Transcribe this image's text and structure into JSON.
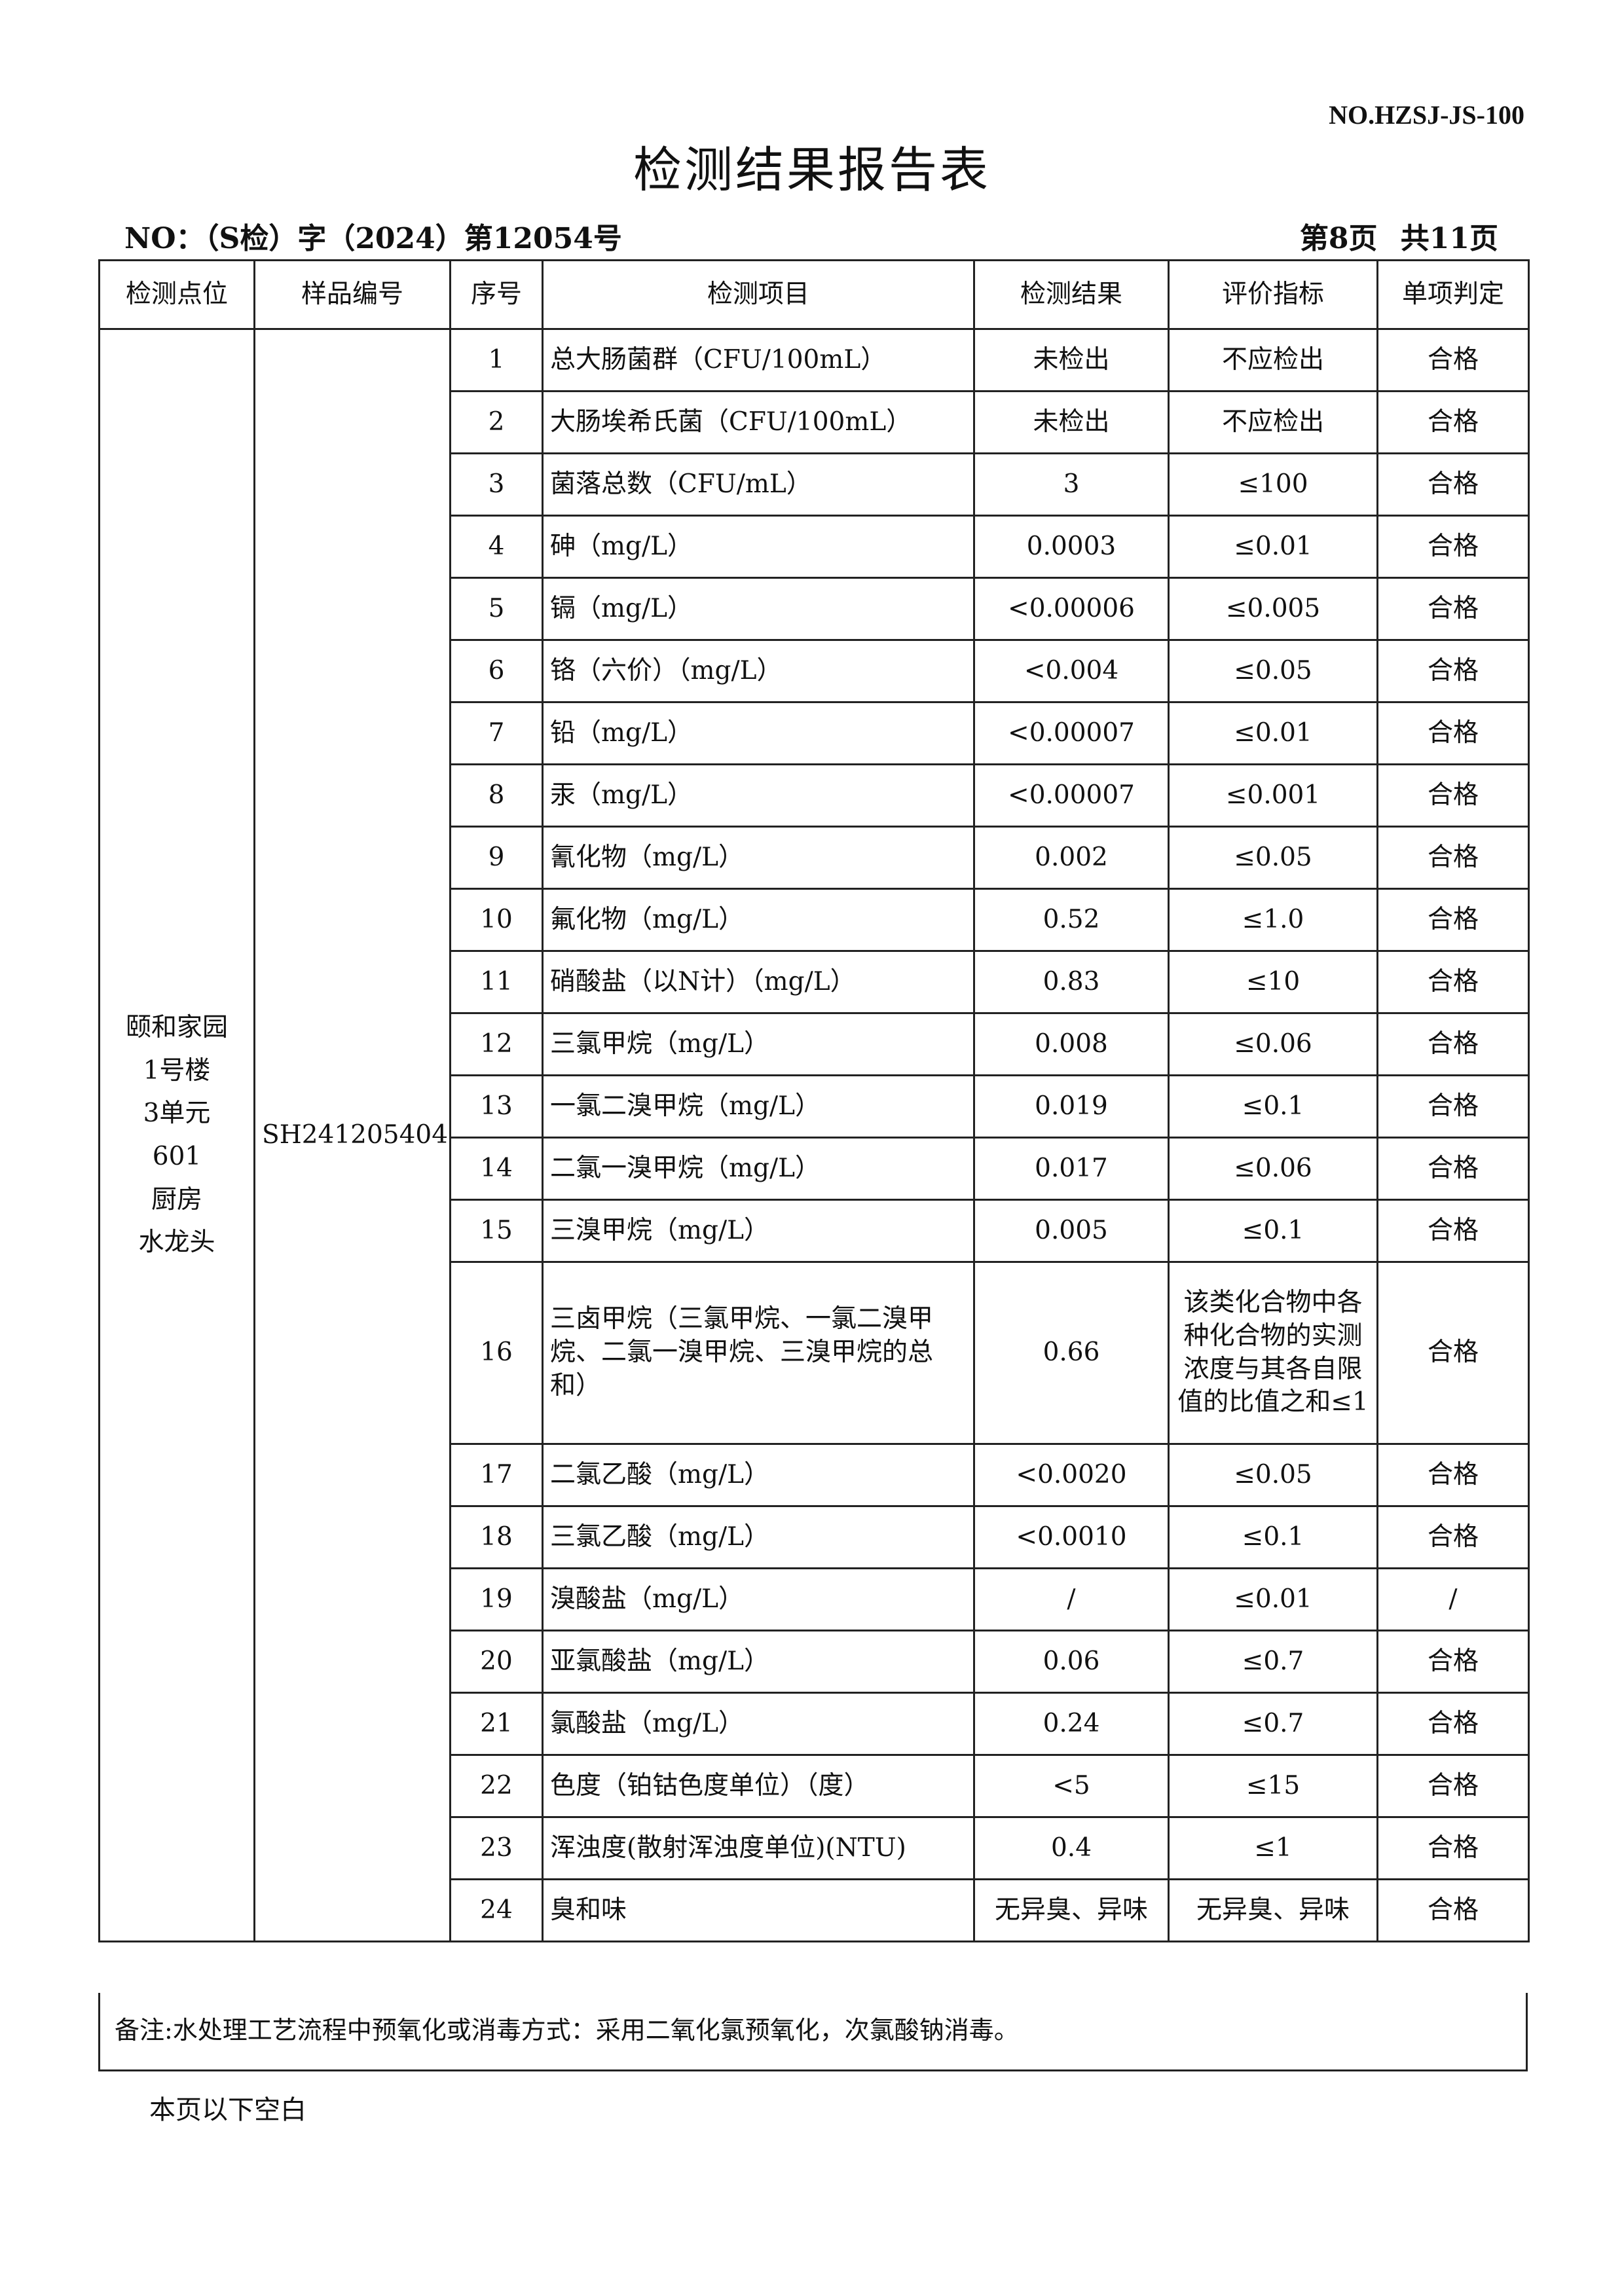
{
  "doc_code": "NO.HZSJ-JS-100",
  "title": "检测结果报告表",
  "report_no": "NO：（S检）字（2024）第12054号",
  "page_info": "第8页 共11页",
  "headers": [
    "检测点位",
    "样品编号",
    "序号",
    "检测项目",
    "检测结果",
    "评价指标",
    "单项判定"
  ],
  "location": "颐和家园\n1号楼\n3单元\n601\n厨房\n水龙头",
  "sample_id": "SH241205404",
  "rows": [
    {
      "no": "1",
      "item": "总大肠菌群（CFU/100mL）",
      "result": "未检出",
      "limit": "不应检出",
      "judge": "合格"
    },
    {
      "no": "2",
      "item": "大肠埃希氏菌（CFU/100mL）",
      "result": "未检出",
      "limit": "不应检出",
      "judge": "合格"
    },
    {
      "no": "3",
      "item": "菌落总数（CFU/mL）",
      "result": "3",
      "limit": "≤100",
      "judge": "合格"
    },
    {
      "no": "4",
      "item": "砷（mg/L）",
      "result": "0.0003",
      "limit": "≤0.01",
      "judge": "合格"
    },
    {
      "no": "5",
      "item": "镉（mg/L）",
      "result": "<0.00006",
      "limit": "≤0.005",
      "judge": "合格"
    },
    {
      "no": "6",
      "item": "铬（六价）（mg/L）",
      "result": "<0.004",
      "limit": "≤0.05",
      "judge": "合格"
    },
    {
      "no": "7",
      "item": "铅（mg/L）",
      "result": "<0.00007",
      "limit": "≤0.01",
      "judge": "合格"
    },
    {
      "no": "8",
      "item": "汞（mg/L）",
      "result": "<0.00007",
      "limit": "≤0.001",
      "judge": "合格"
    },
    {
      "no": "9",
      "item": "氰化物（mg/L）",
      "result": "0.002",
      "limit": "≤0.05",
      "judge": "合格"
    },
    {
      "no": "10",
      "item": "氟化物（mg/L）",
      "result": "0.52",
      "limit": "≤1.0",
      "judge": "合格"
    },
    {
      "no": "11",
      "item": "硝酸盐（以N计）（mg/L）",
      "result": "0.83",
      "limit": "≤10",
      "judge": "合格"
    },
    {
      "no": "12",
      "item": "三氯甲烷（mg/L）",
      "result": "0.008",
      "limit": "≤0.06",
      "judge": "合格"
    },
    {
      "no": "13",
      "item": "一氯二溴甲烷（mg/L）",
      "result": "0.019",
      "limit": "≤0.1",
      "judge": "合格"
    },
    {
      "no": "14",
      "item": "二氯一溴甲烷（mg/L）",
      "result": "0.017",
      "limit": "≤0.06",
      "judge": "合格"
    },
    {
      "no": "15",
      "item": "三溴甲烷（mg/L）",
      "result": "0.005",
      "limit": "≤0.1",
      "judge": "合格"
    },
    {
      "no": "16",
      "item": "三卤甲烷（三氯甲烷、一氯二溴甲烷、二氯一溴甲烷、三溴甲烷的总和）",
      "result": "0.66",
      "limit": "该类化合物中各种化合物的实测浓度与其各自限值的比值之和≤1",
      "judge": "合格"
    },
    {
      "no": "17",
      "item": "二氯乙酸（mg/L）",
      "result": "<0.0020",
      "limit": "≤0.05",
      "judge": "合格"
    },
    {
      "no": "18",
      "item": "三氯乙酸（mg/L）",
      "result": "<0.0010",
      "limit": "≤0.1",
      "judge": "合格"
    },
    {
      "no": "19",
      "item": "溴酸盐（mg/L）",
      "result": "/",
      "limit": "≤0.01",
      "judge": "/"
    },
    {
      "no": "20",
      "item": "亚氯酸盐（mg/L）",
      "result": "0.06",
      "limit": "≤0.7",
      "judge": "合格"
    },
    {
      "no": "21",
      "item": "氯酸盐（mg/L）",
      "result": "0.24",
      "limit": "≤0.7",
      "judge": "合格"
    },
    {
      "no": "22",
      "item": "色度（铂钴色度单位）（度）",
      "result": "<5",
      "limit": "≤15",
      "judge": "合格"
    },
    {
      "no": "23",
      "item": "浑浊度(散射浑浊度单位)(NTU)",
      "result": "0.4",
      "limit": "≤1",
      "judge": "合格"
    },
    {
      "no": "24",
      "item": "臭和味",
      "result": "无异臭、异味",
      "limit": "无异臭、异味",
      "judge": "合格"
    }
  ],
  "remark": "备注:水处理工艺流程中预氧化或消毒方式：采用二氧化氯预氧化，次氯酸钠消毒。",
  "blank_note": "本页以下空白"
}
